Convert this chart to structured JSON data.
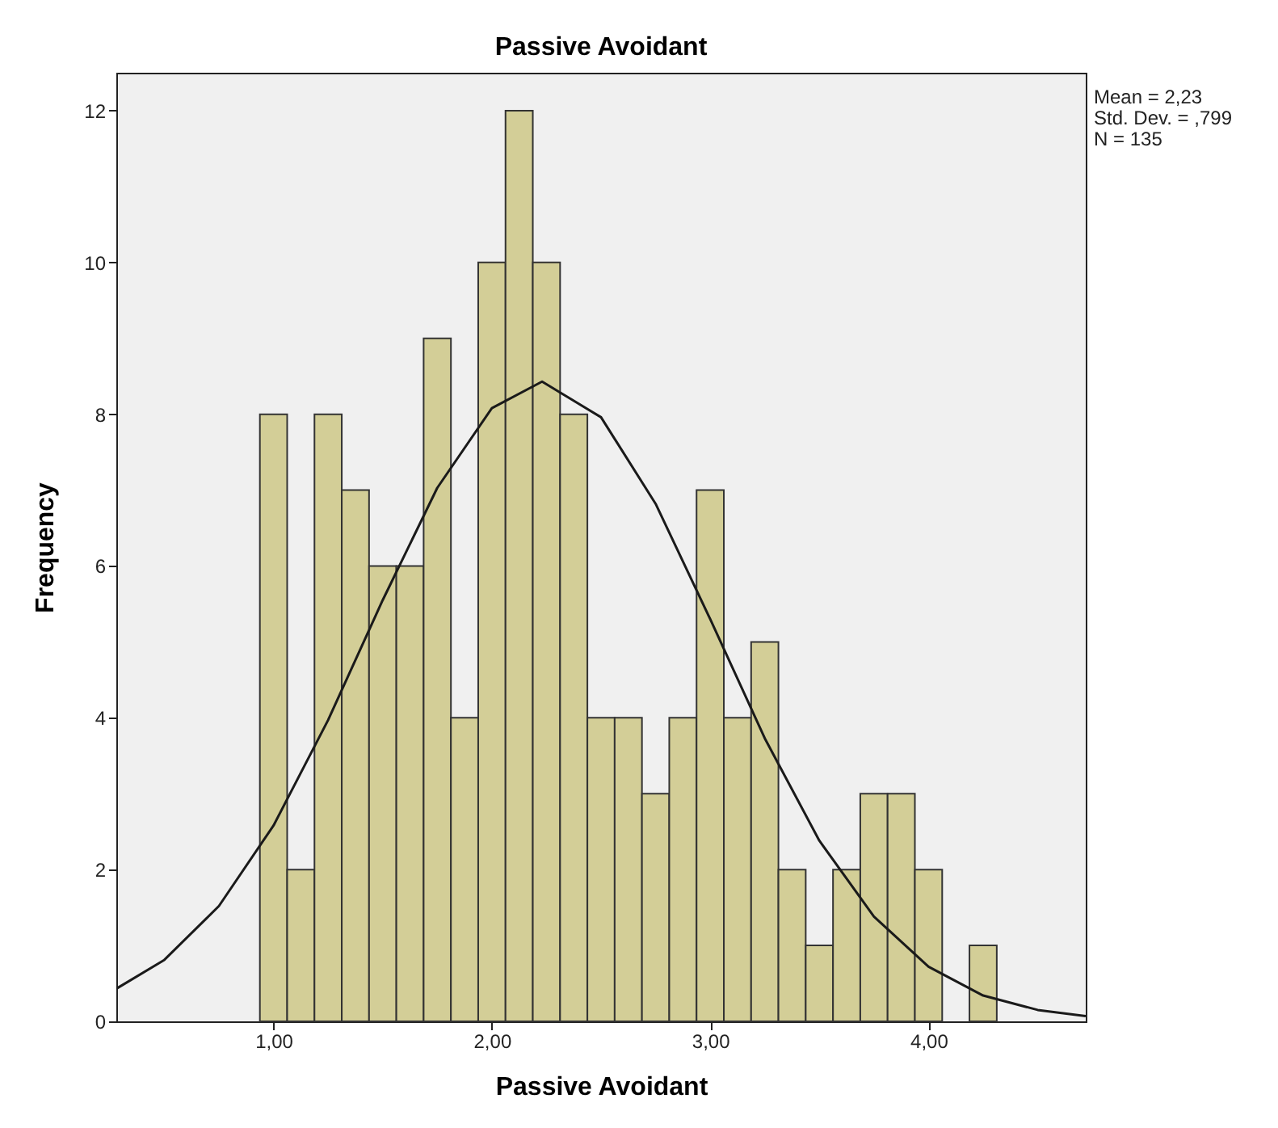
{
  "chart_data": {
    "type": "histogram",
    "title": "Passive Avoidant",
    "xlabel": "Passive Avoidant",
    "ylabel": "Frequency",
    "bins": [
      0.9375,
      1.0625,
      1.1875,
      1.3125,
      1.4375,
      1.5625,
      1.6875,
      1.8125,
      1.9375,
      2.0625,
      2.1875,
      2.3125,
      2.4375,
      2.5625,
      2.6875,
      2.8125,
      2.9375,
      3.0625,
      3.1875,
      3.3125,
      3.4375,
      3.5625,
      3.6875,
      3.8125,
      3.9375,
      4.0625,
      4.1875,
      4.3125
    ],
    "values": [
      8,
      2,
      8,
      7,
      6,
      6,
      9,
      4,
      10,
      12,
      10,
      8,
      4,
      4,
      3,
      4,
      7,
      4,
      5,
      2,
      1,
      2,
      3,
      3,
      2,
      0,
      1
    ],
    "color": "#d3ce97",
    "series": [
      {
        "type": "line",
        "color": "#1a1a1a",
        "x": [
          0.28,
          0.5,
          0.75,
          1.0,
          1.25,
          1.5,
          1.75,
          2.0,
          2.23,
          2.5,
          2.75,
          3.0,
          3.25,
          3.5,
          3.75,
          4.0,
          4.25,
          4.5,
          4.72
        ],
        "values": [
          0.43,
          0.81,
          1.52,
          2.58,
          3.97,
          5.55,
          7.03,
          8.08,
          8.43,
          7.96,
          6.82,
          5.3,
          3.73,
          2.38,
          1.38,
          0.72,
          0.34,
          0.15,
          0.07
        ]
      }
    ],
    "xlim": [
      0.28,
      4.72
    ],
    "ylim": [
      0,
      12.5
    ],
    "xticks": [
      {
        "value": 1,
        "label": "1,00"
      },
      {
        "value": 2,
        "label": "2,00"
      },
      {
        "value": 3,
        "label": "3,00"
      },
      {
        "value": 4,
        "label": "4,00"
      }
    ],
    "yticks": [
      0,
      2,
      4,
      6,
      8,
      10,
      12
    ],
    "grid": false,
    "annotations": [
      "Mean = 2,23",
      "Std. Dev. = ,799",
      "N = 135"
    ]
  }
}
